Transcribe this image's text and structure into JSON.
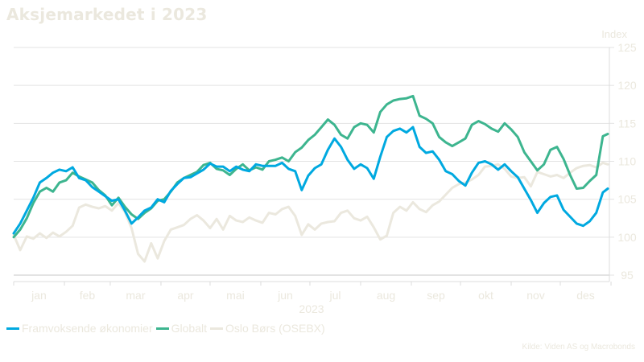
{
  "title": "Aksjemarkedet i 2023",
  "source": "Kilde: Viden AS og Macrobonds",
  "chart_data": {
    "type": "line",
    "title": "Aksjemarkedet i 2023",
    "xlabel": "2023",
    "ylabel": "Index",
    "ylim": [
      94.5,
      126
    ],
    "yticks": [
      95,
      100,
      105,
      110,
      115,
      120,
      125
    ],
    "ytick_labels": [
      "95",
      "100",
      "105",
      "110",
      "115",
      "120",
      "125"
    ],
    "y_axis_position": "right",
    "grid": true,
    "legend_position": "bottom-left",
    "months": [
      "jan",
      "feb",
      "mar",
      "apr",
      "mai",
      "jun",
      "jul",
      "aug",
      "sep",
      "okt",
      "nov",
      "des"
    ],
    "x_unit": "day-of-year",
    "x": [
      1,
      5,
      9,
      13,
      17,
      21,
      25,
      29,
      33,
      37,
      41,
      45,
      49,
      53,
      57,
      61,
      65,
      69,
      73,
      77,
      81,
      85,
      89,
      93,
      97,
      101,
      105,
      109,
      113,
      117,
      121,
      125,
      129,
      133,
      137,
      141,
      145,
      149,
      153,
      157,
      161,
      165,
      169,
      173,
      177,
      181,
      185,
      189,
      193,
      197,
      201,
      205,
      209,
      213,
      217,
      221,
      225,
      229,
      233,
      237,
      241,
      245,
      249,
      253,
      257,
      261,
      265,
      269,
      273,
      277,
      281,
      285,
      289,
      293,
      297,
      301,
      305,
      309,
      313,
      317,
      321,
      325,
      329,
      333,
      337,
      341,
      345,
      349,
      353,
      357,
      361,
      364
    ],
    "series": [
      {
        "name": "Framvoksende økonomier",
        "color": "#00a9e0",
        "values": [
          100.5,
          101.8,
          103.5,
          105.2,
          107.2,
          107.8,
          108.5,
          108.9,
          108.7,
          109.2,
          107.8,
          107.5,
          106.6,
          106.0,
          105.4,
          104.8,
          105.0,
          103.5,
          101.8,
          102.6,
          103.5,
          103.9,
          105.0,
          104.6,
          106.1,
          107.0,
          107.8,
          107.9,
          108.4,
          108.9,
          109.7,
          109.3,
          109.3,
          108.7,
          109.3,
          108.9,
          108.7,
          109.6,
          109.4,
          109.4,
          109.4,
          109.8,
          109.0,
          108.7,
          106.2,
          108.1,
          109.1,
          109.6,
          111.5,
          113.0,
          111.9,
          110.2,
          109.0,
          109.6,
          109.1,
          107.7,
          110.6,
          113.2,
          114.0,
          114.3,
          113.8,
          114.5,
          111.9,
          111.1,
          111.3,
          110.2,
          108.7,
          108.3,
          107.4,
          106.8,
          108.5,
          109.8,
          110.0,
          109.6,
          108.9,
          109.6,
          108.7,
          107.9,
          106.4,
          104.9,
          103.2,
          104.5,
          105.3,
          105.5,
          103.6,
          102.7,
          101.8,
          101.5,
          102.1,
          103.2,
          105.9,
          106.4
        ]
      },
      {
        "name": "Globalt",
        "color": "#3db58f",
        "values": [
          100.0,
          101.0,
          102.5,
          104.5,
          106.0,
          106.5,
          106.0,
          107.2,
          107.5,
          108.5,
          108.0,
          107.6,
          107.2,
          106.2,
          105.5,
          104.2,
          105.2,
          104.0,
          103.0,
          102.4,
          103.2,
          103.8,
          104.8,
          105.0,
          106.0,
          107.2,
          107.8,
          108.2,
          108.6,
          109.5,
          109.8,
          109.0,
          108.8,
          108.2,
          109.0,
          109.6,
          108.8,
          109.2,
          108.9,
          110.0,
          110.2,
          110.5,
          110.0,
          111.2,
          111.8,
          112.8,
          113.5,
          114.5,
          115.5,
          114.8,
          113.5,
          113.0,
          114.5,
          115.0,
          114.8,
          113.8,
          116.5,
          117.5,
          118.0,
          118.2,
          118.3,
          118.6,
          116.0,
          115.6,
          115.0,
          113.2,
          112.5,
          112.0,
          112.5,
          113.0,
          114.8,
          115.3,
          114.9,
          114.3,
          113.9,
          115.0,
          114.2,
          113.2,
          111.2,
          110.0,
          108.8,
          109.6,
          111.5,
          111.9,
          110.3,
          108.2,
          106.4,
          106.5,
          107.4,
          108.2,
          113.3,
          113.6
        ]
      },
      {
        "name": "Oslo Børs (OSEBX)",
        "color": "#ebe8de",
        "values": [
          100.3,
          98.3,
          100.1,
          99.8,
          100.5,
          99.9,
          100.6,
          100.1,
          100.7,
          101.5,
          103.9,
          104.3,
          104.0,
          103.8,
          104.1,
          103.5,
          104.5,
          103.3,
          101.2,
          97.8,
          96.8,
          99.2,
          97.2,
          99.5,
          101.0,
          101.3,
          101.6,
          102.4,
          102.9,
          102.2,
          101.2,
          102.4,
          101.0,
          102.8,
          102.2,
          102.0,
          102.6,
          102.2,
          101.9,
          103.2,
          103.0,
          103.7,
          104.0,
          102.8,
          100.3,
          101.7,
          101.0,
          101.8,
          102.0,
          102.1,
          103.2,
          103.5,
          102.5,
          102.2,
          102.7,
          101.3,
          99.7,
          100.2,
          103.2,
          104.0,
          103.5,
          104.6,
          103.7,
          103.3,
          104.2,
          104.7,
          105.6,
          106.5,
          107.0,
          107.2,
          107.6,
          108.2,
          109.3,
          109.4,
          109.6,
          109.0,
          108.0,
          107.8,
          107.9,
          106.7,
          108.6,
          108.3,
          108.0,
          108.2,
          107.8,
          108.5,
          109.1,
          109.4,
          109.5,
          109.2,
          109.8,
          109.6
        ]
      }
    ]
  },
  "axis": {
    "y_unit": "Index",
    "x_year": "2023"
  },
  "legend": [
    {
      "label": "Framvoksende økonomier",
      "color": "#00a9e0"
    },
    {
      "label": "Globalt",
      "color": "#3db58f"
    },
    {
      "label": "Oslo Børs (OSEBX)",
      "color": "#ebe8de"
    }
  ]
}
